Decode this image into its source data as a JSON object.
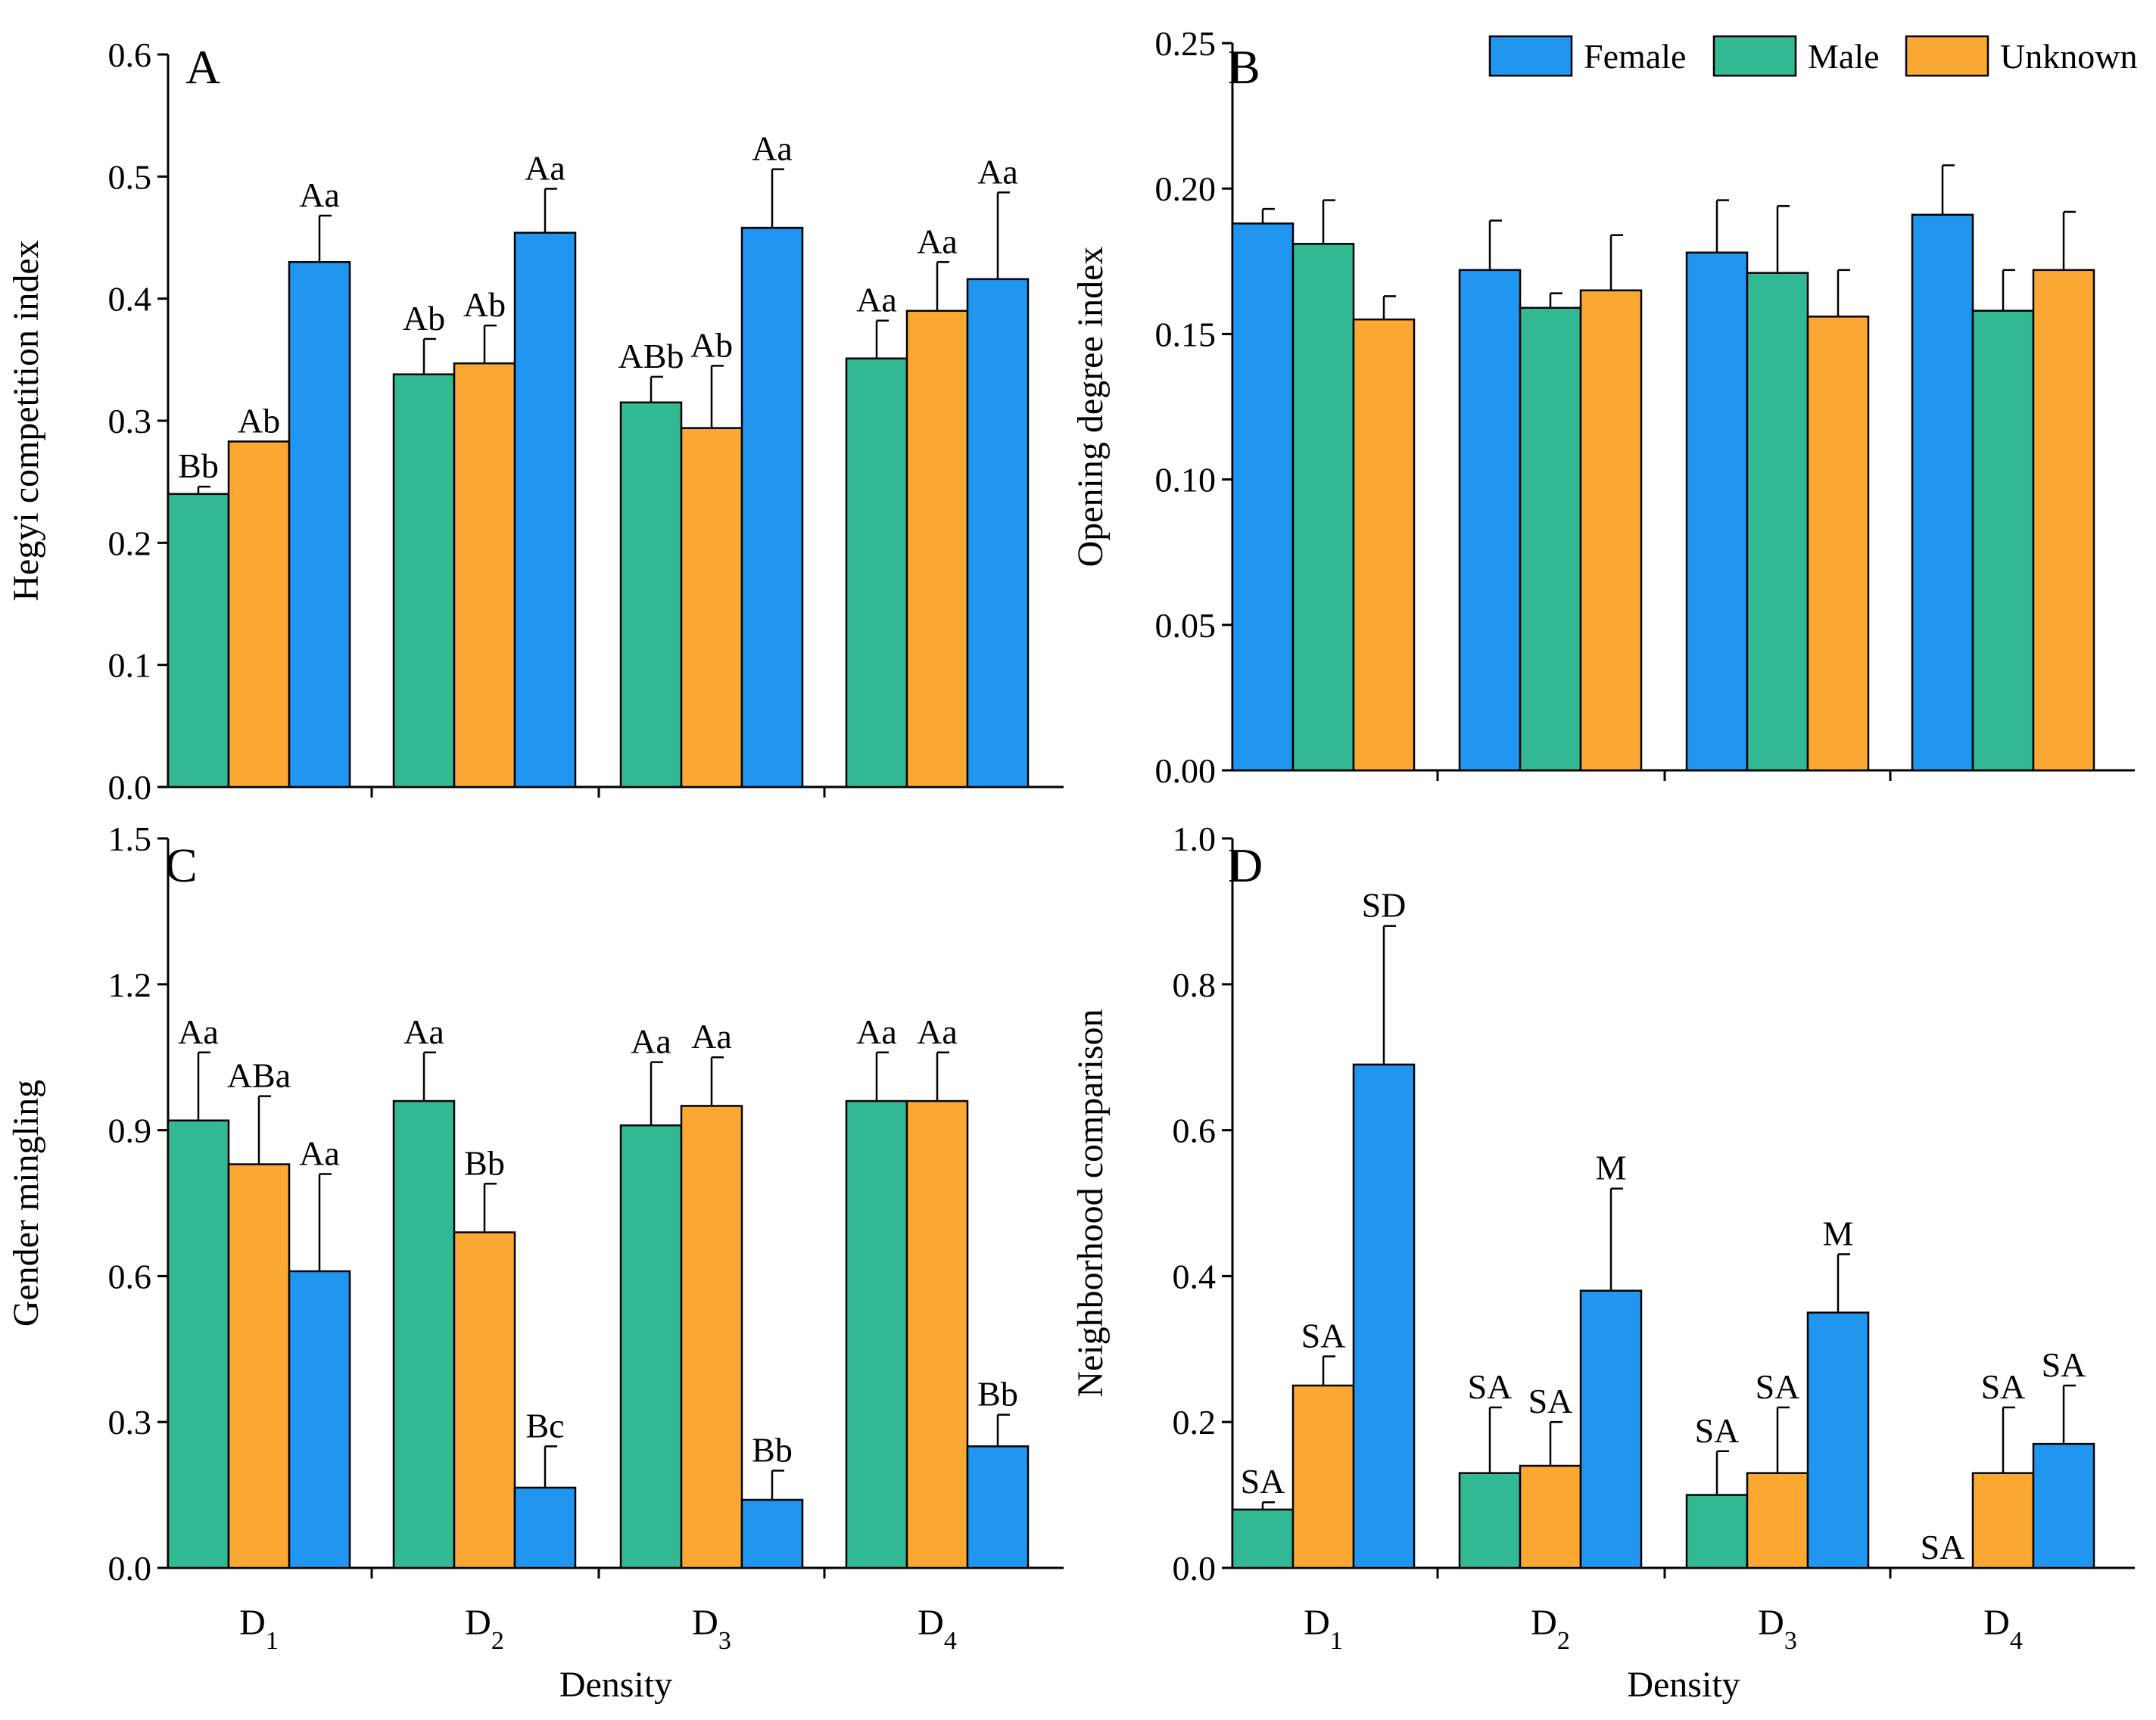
{
  "colors": {
    "Female": "#2196f0",
    "Male": "#33b894",
    "Unknown": "#fba832"
  },
  "legend": {
    "items": [
      "Female",
      "Male",
      "Unknown"
    ]
  },
  "x_labels": [
    {
      "base": "D",
      "sub": "1"
    },
    {
      "base": "D",
      "sub": "2"
    },
    {
      "base": "D",
      "sub": "3"
    },
    {
      "base": "D",
      "sub": "4"
    }
  ],
  "x_title": "Density",
  "chart_data": [
    {
      "type": "bar",
      "panel": "A",
      "ylabel": "Hegyi competition index",
      "ylim": [
        0,
        0.6
      ],
      "yticks": [
        "0.0",
        "0.1",
        "0.2",
        "0.3",
        "0.4",
        "0.5",
        "0.6"
      ],
      "categories": [
        "D1",
        "D2",
        "D3",
        "D4"
      ],
      "series_order": [
        "Male",
        "Unknown",
        "Female"
      ],
      "series": [
        {
          "name": "Male",
          "values": [
            0.24,
            0.338,
            0.315,
            0.351
          ],
          "errors": [
            0.006,
            0.029,
            0.021,
            0.031
          ],
          "labels": [
            "Bb",
            "Ab",
            "ABb",
            "Aa"
          ]
        },
        {
          "name": "Unknown",
          "values": [
            0.283,
            0.347,
            0.294,
            0.39
          ],
          "errors": [
            0,
            0.031,
            0.051,
            0.04
          ],
          "labels": [
            "Ab",
            "Ab",
            "Ab",
            "Aa"
          ]
        },
        {
          "name": "Female",
          "values": [
            0.43,
            0.454,
            0.458,
            0.416
          ],
          "errors": [
            0.038,
            0.036,
            0.048,
            0.071
          ],
          "labels": [
            "Aa",
            "Aa",
            "Aa",
            "Aa"
          ]
        }
      ]
    },
    {
      "type": "bar",
      "panel": "B",
      "ylabel": "Opening degree index",
      "ylim": [
        0,
        0.25
      ],
      "yticks": [
        "0.00",
        "0.05",
        "0.10",
        "0.15",
        "0.20",
        "0.25"
      ],
      "categories": [
        "D1",
        "D2",
        "D3",
        "D4"
      ],
      "series_order": [
        "Female",
        "Male",
        "Unknown"
      ],
      "legend_position": "top-right",
      "series": [
        {
          "name": "Female",
          "values": [
            0.188,
            0.172,
            0.178,
            0.191
          ],
          "errors": [
            0.005,
            0.017,
            0.018,
            0.017
          ]
        },
        {
          "name": "Male",
          "values": [
            0.181,
            0.159,
            0.171,
            0.158
          ],
          "errors": [
            0.015,
            0.005,
            0.023,
            0.014
          ]
        },
        {
          "name": "Unknown",
          "values": [
            0.155,
            0.165,
            0.156,
            0.172
          ],
          "errors": [
            0.008,
            0.019,
            0.016,
            0.02
          ]
        }
      ]
    },
    {
      "type": "bar",
      "panel": "C",
      "ylabel": "Gender mingling",
      "ylim": [
        0,
        1.5
      ],
      "yticks": [
        "0.0",
        "0.3",
        "0.6",
        "0.9",
        "1.2",
        "1.5"
      ],
      "categories": [
        "D1",
        "D2",
        "D3",
        "D4"
      ],
      "series_order": [
        "Male",
        "Unknown",
        "Female"
      ],
      "series": [
        {
          "name": "Male",
          "values": [
            0.92,
            0.96,
            0.91,
            0.96
          ],
          "errors": [
            0.14,
            0.1,
            0.13,
            0.1
          ],
          "labels": [
            "Aa",
            "Aa",
            "Aa",
            "Aa"
          ]
        },
        {
          "name": "Unknown",
          "values": [
            0.83,
            0.69,
            0.95,
            0.96
          ],
          "errors": [
            0.14,
            0.1,
            0.1,
            0.1
          ],
          "labels": [
            "ABa",
            "Bb",
            "Aa",
            "Aa"
          ]
        },
        {
          "name": "Female",
          "values": [
            0.61,
            0.165,
            0.14,
            0.25
          ],
          "errors": [
            0.2,
            0.085,
            0.06,
            0.065
          ],
          "labels": [
            "Aa",
            "Bc",
            "Bb",
            "Bb"
          ]
        }
      ]
    },
    {
      "type": "bar",
      "panel": "D",
      "ylabel": "Neighborhood comparison",
      "ylim": [
        0,
        1.0
      ],
      "yticks": [
        "0.0",
        "0.2",
        "0.4",
        "0.6",
        "0.8",
        "1.0"
      ],
      "categories": [
        "D1",
        "D2",
        "D3",
        "D4"
      ],
      "series_order": [
        "Male",
        "Unknown",
        "Female"
      ],
      "series": [
        {
          "name": "Male",
          "values": [
            0.08,
            0.13,
            0.1,
            0
          ],
          "errors": [
            0.01,
            0.09,
            0.06,
            0
          ],
          "labels": [
            "SA",
            "SA",
            "SA",
            "SA"
          ]
        },
        {
          "name": "Unknown",
          "values": [
            0.25,
            0.14,
            0.13,
            0.13
          ],
          "errors": [
            0.04,
            0.06,
            0.09,
            0.09
          ],
          "labels": [
            "SA",
            "SA",
            "SA",
            "SA"
          ]
        },
        {
          "name": "Female",
          "values": [
            0.69,
            0.38,
            0.35,
            0.17
          ],
          "errors": [
            0.19,
            0.14,
            0.08,
            0.08
          ],
          "labels": [
            "SD",
            "M",
            "M",
            "SA"
          ]
        }
      ]
    }
  ]
}
